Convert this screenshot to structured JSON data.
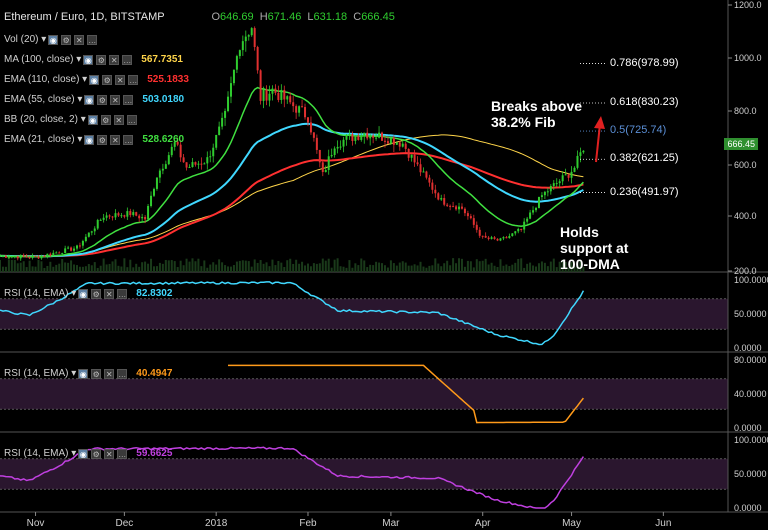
{
  "header": {
    "title": "Ethereum / Euro, 1D, BITSTAMP",
    "open_label": "O",
    "open": "646.69",
    "high_label": "H",
    "high": "671.46",
    "low_label": "L",
    "low": "631.18",
    "close_label": "C",
    "close": "666.45"
  },
  "indicators": [
    {
      "label": "Vol (20)",
      "value": "",
      "color": "#d0d0d0"
    },
    {
      "label": "MA (100, close)",
      "value": "567.7351",
      "color": "#ffd54a"
    },
    {
      "label": "EMA (110, close)",
      "value": "525.1833",
      "color": "#ff3030"
    },
    {
      "label": "EMA (55, close)",
      "value": "503.0180",
      "color": "#40d8ff"
    },
    {
      "label": "BB (20, close, 2)",
      "value": "",
      "color": "#d0d0d0"
    },
    {
      "label": "EMA (21, close)",
      "value": "528.6260",
      "color": "#40e040"
    }
  ],
  "rsi_panels": [
    {
      "label": "RSI (14, EMA)",
      "value": "82.8302",
      "color": "#40d8ff"
    },
    {
      "label": "RSI (14, EMA)",
      "value": "40.4947",
      "color": "#ff9a1a"
    },
    {
      "label": "RSI (14, EMA)",
      "value": "59.6625",
      "color": "#c040e0"
    }
  ],
  "annotations": {
    "breaks": "Breaks above\n38.2% Fib",
    "holds": "Holds\nsupport at\n100-DMA"
  },
  "fib_labels": [
    {
      "text": "0.786(978.99)",
      "price": 978.99,
      "color": "#ffffff"
    },
    {
      "text": "0.618(830.23)",
      "price": 830.23,
      "color": "#ffffff"
    },
    {
      "text": "0.5(725.74)",
      "price": 725.74,
      "color": "#5b8fd6"
    },
    {
      "text": "0.382(621.25)",
      "price": 621.25,
      "color": "#ffffff"
    },
    {
      "text": "0.236(491.97)",
      "price": 491.97,
      "color": "#ffffff"
    }
  ],
  "current_price_tag": "666.45",
  "colors": {
    "up": "#2fcc2f",
    "down": "#e03030",
    "panel_bg": "#1c0f1e",
    "band": "#2a162e"
  },
  "chart_data": {
    "type": "line",
    "title": "Ethereum / Euro, 1D, BITSTAMP",
    "x_ticks": [
      "Nov",
      "Dec",
      "2018",
      "Feb",
      "Mar",
      "Apr",
      "May",
      "Jun"
    ],
    "y_ticks": [
      200,
      400,
      600,
      800,
      1000,
      1200
    ],
    "ylim": [
      200,
      1200
    ],
    "close_series": [
      {
        "date": "2017-10-20",
        "price": 255
      },
      {
        "date": "2017-11-01",
        "price": 250
      },
      {
        "date": "2017-11-15",
        "price": 285
      },
      {
        "date": "2017-11-24",
        "price": 400
      },
      {
        "date": "2017-12-03",
        "price": 410
      },
      {
        "date": "2017-12-08",
        "price": 390
      },
      {
        "date": "2017-12-12",
        "price": 560
      },
      {
        "date": "2017-12-18",
        "price": 680
      },
      {
        "date": "2017-12-22",
        "price": 590
      },
      {
        "date": "2017-12-29",
        "price": 620
      },
      {
        "date": "2018-01-04",
        "price": 780
      },
      {
        "date": "2018-01-09",
        "price": 1060
      },
      {
        "date": "2018-01-13",
        "price": 1120
      },
      {
        "date": "2018-01-16",
        "price": 850
      },
      {
        "date": "2018-01-20",
        "price": 880
      },
      {
        "date": "2018-01-27",
        "price": 820
      },
      {
        "date": "2018-02-01",
        "price": 780
      },
      {
        "date": "2018-02-06",
        "price": 560
      },
      {
        "date": "2018-02-10",
        "price": 680
      },
      {
        "date": "2018-02-20",
        "price": 720
      },
      {
        "date": "2018-02-28",
        "price": 700
      },
      {
        "date": "2018-03-05",
        "price": 680
      },
      {
        "date": "2018-03-12",
        "price": 560
      },
      {
        "date": "2018-03-18",
        "price": 460
      },
      {
        "date": "2018-03-25",
        "price": 430
      },
      {
        "date": "2018-04-01",
        "price": 320
      },
      {
        "date": "2018-04-07",
        "price": 310
      },
      {
        "date": "2018-04-14",
        "price": 350
      },
      {
        "date": "2018-04-21",
        "price": 480
      },
      {
        "date": "2018-04-25",
        "price": 520
      },
      {
        "date": "2018-04-30",
        "price": 565
      },
      {
        "date": "2018-05-02",
        "price": 590
      },
      {
        "date": "2018-05-05",
        "price": 666.45
      }
    ],
    "rsi_ticks": [
      0,
      50,
      100
    ],
    "rsi_ticks_orange": [
      0,
      40,
      80
    ]
  }
}
